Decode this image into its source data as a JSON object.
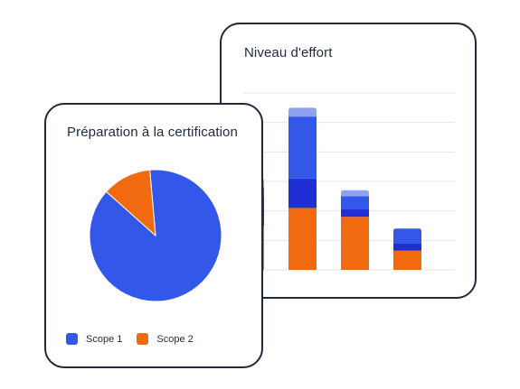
{
  "chart_data": [
    {
      "type": "bar",
      "stacked": true,
      "title": "Niveau d'effort",
      "categories": [
        "",
        "",
        "",
        ""
      ],
      "series": [
        {
          "color": "#f26a10",
          "values": [
            15,
            21,
            18,
            6.5
          ]
        },
        {
          "color": "#1e2fd6",
          "values": [
            10,
            10,
            2.5,
            2.5
          ]
        },
        {
          "color": "#3357e8",
          "values": [
            3,
            21,
            4.5,
            5
          ]
        },
        {
          "color": "#8ea2f2",
          "values": [
            3,
            3,
            2,
            0
          ]
        }
      ],
      "ylim": [
        0,
        60
      ],
      "grid": true
    },
    {
      "type": "pie",
      "title": "Préparation à la certification",
      "labels": [
        "Scope 1",
        "Scope 2"
      ],
      "values": [
        88,
        12
      ],
      "colors": [
        "#3357e8",
        "#f26a10"
      ],
      "legend": "bottom-left"
    }
  ]
}
